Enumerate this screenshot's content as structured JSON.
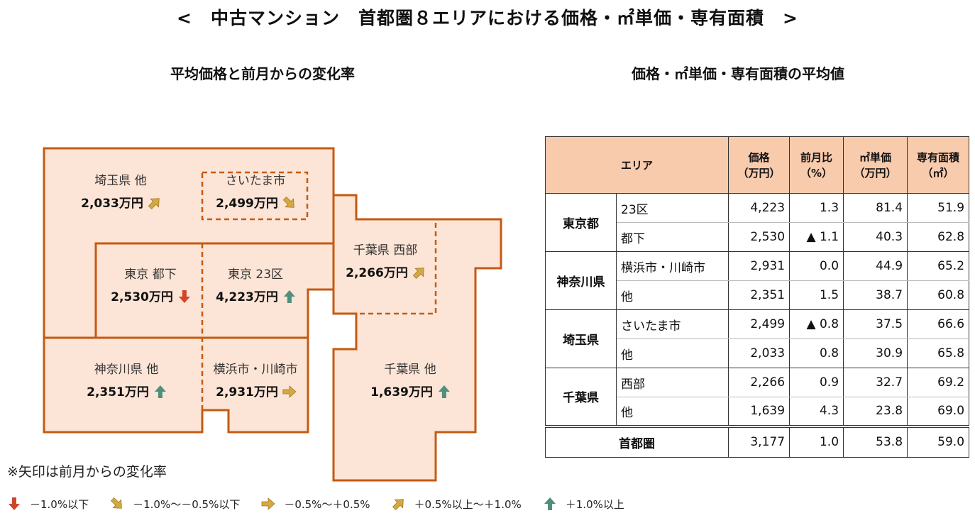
{
  "title": "<　中古マンション　首都圏８エリアにおける価格・㎡単価・専有面積　>",
  "map_title": "平均価格と前月からの変化率",
  "table_title": "価格・㎡単価・専有面積の平均値",
  "colors": {
    "region_fill": "#fce4d6",
    "region_border": "#c55a11",
    "header_fill": "#f8cbad",
    "arrow_down": "#d0452a",
    "arrow_down_small": "#d4a843",
    "arrow_flat": "#d4a843",
    "arrow_up_small": "#d4a843",
    "arrow_up": "#4f8f7c"
  },
  "map": {
    "regions": [
      {
        "label": "埼玉県 他",
        "price": "2,033万円",
        "trend": "up-small"
      },
      {
        "label": "さいたま市",
        "price": "2,499万円",
        "trend": "down-small"
      },
      {
        "label": "東京 都下",
        "price": "2,530万円",
        "trend": "down"
      },
      {
        "label": "東京 23区",
        "price": "4,223万円",
        "trend": "up"
      },
      {
        "label": "千葉県 西部",
        "price": "2,266万円",
        "trend": "up-small"
      },
      {
        "label": "神奈川県 他",
        "price": "2,351万円",
        "trend": "up"
      },
      {
        "label": "横浜市・川崎市",
        "price": "2,931万円",
        "trend": "flat"
      },
      {
        "label": "千葉県 他",
        "price": "1,639万円",
        "trend": "up"
      }
    ]
  },
  "note": "※矢印は前月からの変化率",
  "legend": [
    {
      "icon": "arrow-down-icon",
      "label": "－1.0%以下"
    },
    {
      "icon": "arrow-down-right-icon",
      "label": "－1.0%～－0.5%以下"
    },
    {
      "icon": "arrow-right-icon",
      "label": "－0.5%～＋0.5%"
    },
    {
      "icon": "arrow-up-right-icon",
      "label": "＋0.5%以上～＋1.0%"
    },
    {
      "icon": "arrow-up-icon",
      "label": "＋1.0%以上"
    }
  ],
  "table": {
    "headers": {
      "area": "エリア",
      "price": [
        "価格",
        "（万円）"
      ],
      "change": [
        "前月比",
        "（%）"
      ],
      "unit_price": [
        "㎡単価",
        "（万円）"
      ],
      "area_size": [
        "専有面積",
        "（㎡）"
      ]
    },
    "groups": [
      {
        "name": "東京都",
        "rows": [
          {
            "sub": "23区",
            "price": "4,223",
            "change": "1.3",
            "unit": "81.4",
            "size": "51.9"
          },
          {
            "sub": "都下",
            "price": "2,530",
            "change": "▲ 1.1",
            "unit": "40.3",
            "size": "62.8"
          }
        ]
      },
      {
        "name": "神奈川県",
        "rows": [
          {
            "sub": "横浜市・川崎市",
            "price": "2,931",
            "change": "0.0",
            "unit": "44.9",
            "size": "65.2"
          },
          {
            "sub": "他",
            "price": "2,351",
            "change": "1.5",
            "unit": "38.7",
            "size": "60.8"
          }
        ]
      },
      {
        "name": "埼玉県",
        "rows": [
          {
            "sub": "さいたま市",
            "price": "2,499",
            "change": "▲ 0.8",
            "unit": "37.5",
            "size": "66.6"
          },
          {
            "sub": "他",
            "price": "2,033",
            "change": "0.8",
            "unit": "30.9",
            "size": "65.8"
          }
        ]
      },
      {
        "name": "千葉県",
        "rows": [
          {
            "sub": "西部",
            "price": "2,266",
            "change": "0.9",
            "unit": "32.7",
            "size": "69.2"
          },
          {
            "sub": "他",
            "price": "1,639",
            "change": "4.3",
            "unit": "23.8",
            "size": "69.0"
          }
        ]
      }
    ],
    "total": {
      "name": "首都圏",
      "price": "3,177",
      "change": "1.0",
      "unit": "53.8",
      "size": "59.0"
    }
  },
  "chart_data": {
    "type": "table",
    "title": "中古マンション 首都圏８エリアにおける価格・㎡単価・専有面積",
    "columns": [
      "エリア",
      "価格（万円）",
      "前月比（%）",
      "㎡単価（万円）",
      "専有面積（㎡）"
    ],
    "rows": [
      [
        "東京都 23区",
        4223,
        1.3,
        81.4,
        51.9
      ],
      [
        "東京都 都下",
        2530,
        -1.1,
        40.3,
        62.8
      ],
      [
        "神奈川県 横浜市・川崎市",
        2931,
        0.0,
        44.9,
        65.2
      ],
      [
        "神奈川県 他",
        2351,
        1.5,
        38.7,
        60.8
      ],
      [
        "埼玉県 さいたま市",
        2499,
        -0.8,
        37.5,
        66.6
      ],
      [
        "埼玉県 他",
        2033,
        0.8,
        30.9,
        65.8
      ],
      [
        "千葉県 西部",
        2266,
        0.9,
        32.7,
        69.2
      ],
      [
        "千葉県 他",
        1639,
        4.3,
        23.8,
        69.0
      ],
      [
        "首都圏",
        3177,
        1.0,
        53.8,
        59.0
      ]
    ]
  }
}
